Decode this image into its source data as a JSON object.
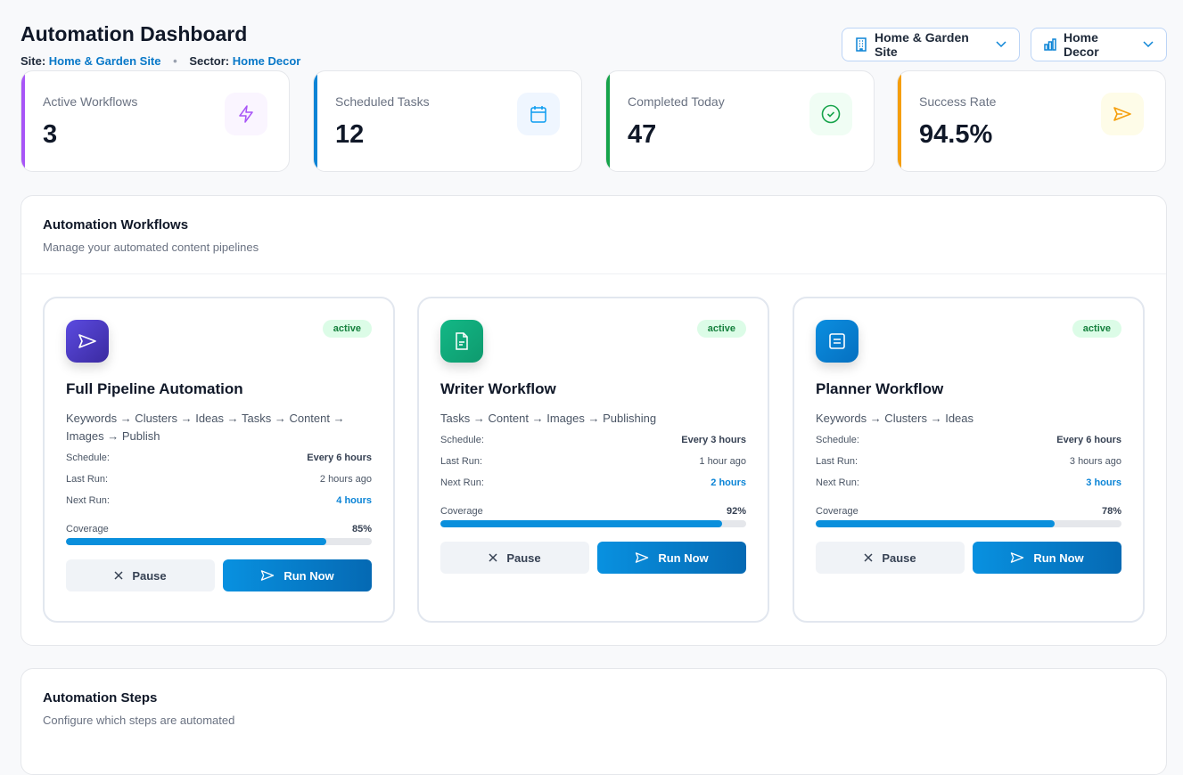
{
  "header": {
    "title": "Automation Dashboard",
    "site_label": "Site:",
    "site_value": "Home & Garden Site",
    "sector_label": "Sector:",
    "sector_value": "Home Decor",
    "separator": "•"
  },
  "selectors": {
    "site": {
      "value": "Home & Garden Site",
      "icon": "building-icon"
    },
    "sector": {
      "value": "Home Decor",
      "icon": "bar-chart-icon"
    }
  },
  "stats": [
    {
      "label": "Active Workflows",
      "value": "3",
      "color": "#a855f7",
      "icon": "bolt-icon"
    },
    {
      "label": "Scheduled Tasks",
      "value": "12",
      "color": "#0b84d6",
      "icon": "calendar-icon"
    },
    {
      "label": "Completed Today",
      "value": "47",
      "color": "#16a34a",
      "icon": "check-circle-icon"
    },
    {
      "label": "Success Rate",
      "value": "94.5%",
      "color": "#f59e0b",
      "icon": "send-icon"
    }
  ],
  "workflows_panel": {
    "title": "Automation Workflows",
    "subtitle": "Manage your automated content pipelines"
  },
  "workflows": [
    {
      "name": "Full Pipeline Automation",
      "status": "active",
      "flow": "Keywords → Clusters → Ideas → Tasks → Content → Images → Publish",
      "schedule_label": "Schedule:",
      "schedule": "Every 6 hours",
      "last_label": "Last Run:",
      "last_run": "2 hours ago",
      "next_label": "Next Run:",
      "next_run": "4 hours",
      "coverage_label": "Coverage",
      "coverage": "85%",
      "coverage_value": 85,
      "pause": "Pause",
      "run": "Run Now",
      "icon": "send-icon"
    },
    {
      "name": "Writer Workflow",
      "status": "active",
      "flow": "Tasks → Content → Images → Publishing",
      "schedule_label": "Schedule:",
      "schedule": "Every 3 hours",
      "last_label": "Last Run:",
      "last_run": "1 hour ago",
      "next_label": "Next Run:",
      "next_run": "2 hours",
      "coverage_label": "Coverage",
      "coverage": "92%",
      "coverage_value": 92,
      "pause": "Pause",
      "run": "Run Now",
      "icon": "file-text-icon"
    },
    {
      "name": "Planner Workflow",
      "status": "active",
      "flow": "Keywords → Clusters → Ideas",
      "schedule_label": "Schedule:",
      "schedule": "Every 6 hours",
      "last_label": "Last Run:",
      "last_run": "3 hours ago",
      "next_label": "Next Run:",
      "next_run": "3 hours",
      "coverage_label": "Coverage",
      "coverage": "78%",
      "coverage_value": 78,
      "pause": "Pause",
      "run": "Run Now",
      "icon": "list-icon"
    }
  ],
  "steps_panel": {
    "title": "Automation Steps",
    "subtitle": "Configure which steps are automated"
  }
}
